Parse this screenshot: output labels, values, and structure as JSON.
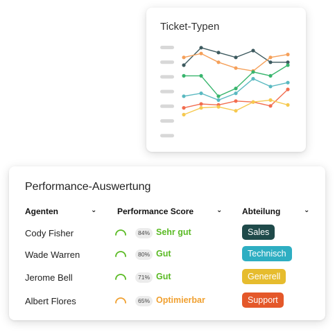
{
  "chart": {
    "title": "Ticket-Typen",
    "colors": [
      "#3d5a5f",
      "#f5a05a",
      "#38b56d",
      "#5ab9c1",
      "#f26d4f",
      "#f6c94f"
    ]
  },
  "chart_data": {
    "type": "line",
    "title": "Ticket-Typen",
    "x": [
      1,
      2,
      3,
      4,
      5,
      6,
      7
    ],
    "ylim": [
      0,
      10
    ],
    "grid": false,
    "series": [
      {
        "values": [
          8.0,
          9.8,
          9.3,
          8.8,
          9.5,
          8.3,
          8.3
        ]
      },
      {
        "values": [
          8.8,
          9.2,
          8.3,
          7.7,
          7.4,
          8.8,
          9.1
        ]
      },
      {
        "values": [
          6.9,
          6.9,
          4.8,
          5.6,
          7.3,
          6.9,
          8.0
        ]
      },
      {
        "values": [
          4.8,
          5.1,
          4.4,
          5.1,
          6.6,
          5.8,
          6.2
        ]
      },
      {
        "values": [
          3.6,
          4.0,
          3.9,
          4.3,
          4.2,
          3.8,
          5.5
        ]
      },
      {
        "values": [
          2.9,
          3.6,
          3.7,
          3.3,
          4.2,
          4.4,
          3.9
        ]
      }
    ]
  },
  "table": {
    "title": "Performance-Auswertung",
    "headers": {
      "agents": "Agenten",
      "score": "Performance Score",
      "department": "Abteilung",
      "chevron": "⌄"
    },
    "rows": [
      {
        "agent": "Cody Fisher",
        "percent": "84%",
        "score_value": 0.84,
        "rating": "Sehr gut",
        "rating_color": "#5aba24",
        "department": "Sales",
        "department_color": "#1f4a4a"
      },
      {
        "agent": "Wade Warren",
        "percent": "80%",
        "score_value": 0.8,
        "rating": "Gut",
        "rating_color": "#5aba24",
        "department": "Technisch",
        "department_color": "#2eaec2"
      },
      {
        "agent": "Jerome Bell",
        "percent": "71%",
        "score_value": 0.71,
        "rating": "Gut",
        "rating_color": "#5aba24",
        "department": "Generell",
        "department_color": "#e6bc2e"
      },
      {
        "agent": "Albert Flores",
        "percent": "65%",
        "score_value": 0.65,
        "rating": "Optimierbar",
        "rating_color": "#f0a030",
        "department": "Support",
        "department_color": "#e4582a"
      }
    ]
  }
}
